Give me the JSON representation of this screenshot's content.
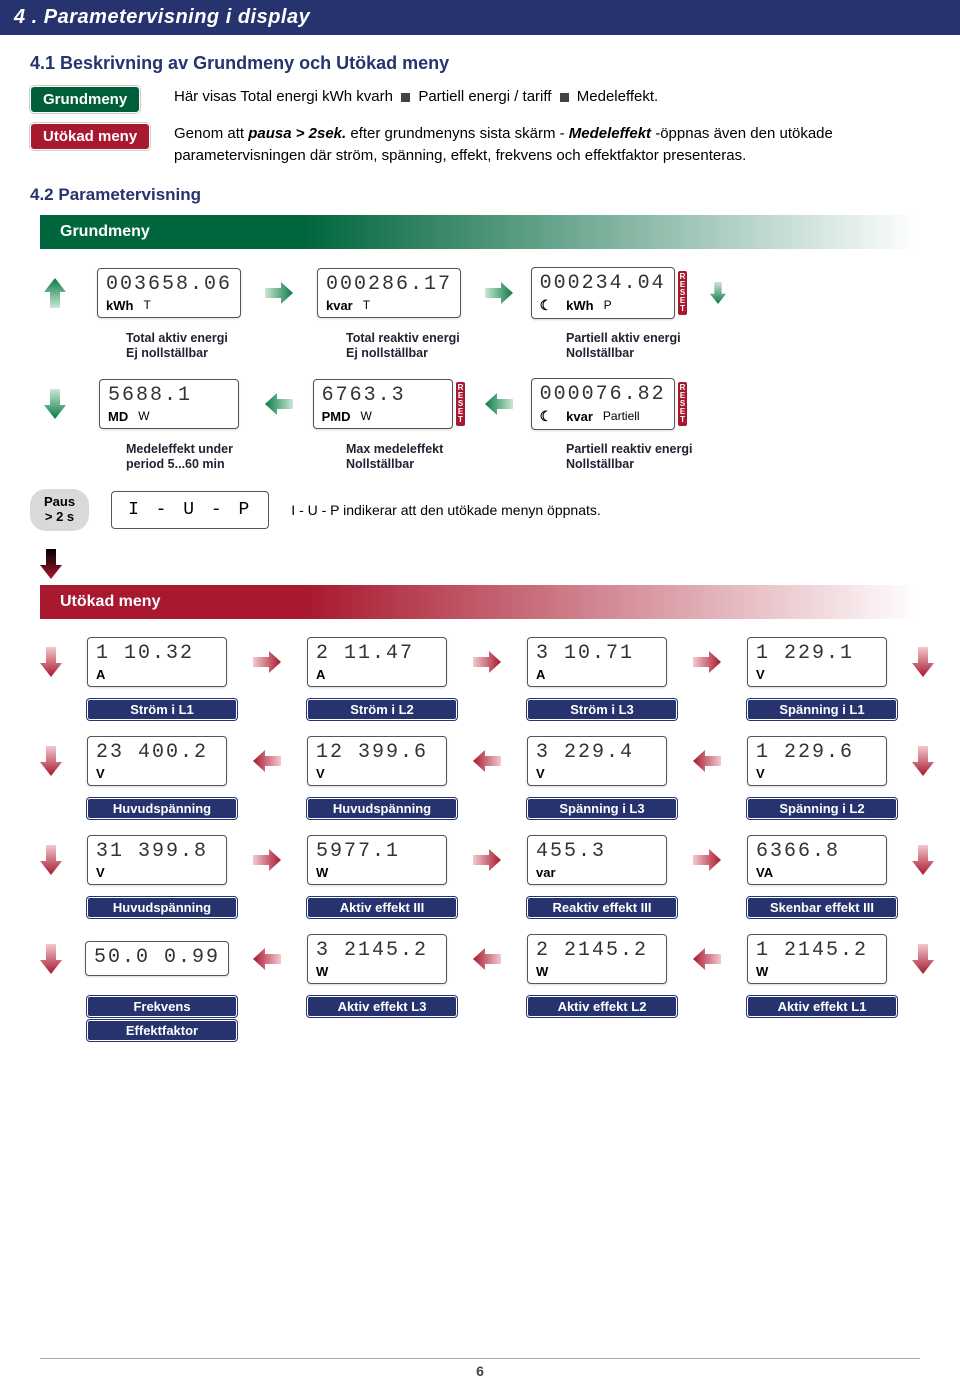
{
  "colors": {
    "navy": "#26336e",
    "green": "#005f3b",
    "red": "#a8182e",
    "green_grad_from": "#00663e",
    "red_grad_from": "#a8182e"
  },
  "header": "4 . Parametervisning i display",
  "h41": "4.1 Beskrivning av Grundmeny och Utökad meny",
  "grundmeny_label": "Grundmeny",
  "utokad_label": "Utökad meny",
  "grundmeny_text_parts": {
    "a": "Här visas Total energi  kWh kvarh ",
    "b": " Partiell energi / tariff ",
    "c": " Medeleffekt."
  },
  "utokad_text_parts": {
    "a": "Genom att ",
    "b": "pausa > 2sek.",
    "c": " efter grundmenyns sista skärm - ",
    "d": "Medeleffekt",
    "e": " -öppnas även den utökade parametervisningen där ström, spänning, effekt, frekvens och effektfaktor presenteras."
  },
  "h42": "4.2 Parametervisning",
  "grund": {
    "title": "Grundmeny",
    "row1": [
      {
        "digits": "003658.06",
        "unit": "kWh",
        "tag": "T",
        "caption1": "Total aktiv energi",
        "caption2": "Ej nollställbar",
        "reset": false,
        "moon": false
      },
      {
        "digits": "000286.17",
        "unit": "kvar",
        "tag": "T",
        "caption1": "Total reaktiv energi",
        "caption2": "Ej nollställbar",
        "reset": false,
        "moon": false
      },
      {
        "digits": "000234.04",
        "unit": "kWh",
        "tag": "P",
        "caption1": "Partiell aktiv energi",
        "caption2": "Nollställbar",
        "reset": true,
        "moon": true
      }
    ],
    "row2": [
      {
        "digits": "5688.1",
        "unit": "MD",
        "tag": "W",
        "caption1": "Medeleffekt under",
        "caption2": "period 5...60 min",
        "reset": false,
        "moon": false
      },
      {
        "digits": "6763.3",
        "unit": "PMD",
        "tag": "W",
        "caption1": "Max medeleffekt",
        "caption2": "Nollställbar",
        "reset": true,
        "moon": false
      },
      {
        "digits": "000076.82",
        "unit": "kvar",
        "tag": "Partiell",
        "caption1": "Partiell reaktiv energi",
        "caption2": "Nollställbar",
        "reset": true,
        "moon": true
      }
    ]
  },
  "paus": {
    "label1": "Paus",
    "label2": "> 2 s",
    "iup": "I - U - P",
    "iup_text": "I - U - P indikerar att den utökade menyn öppnats."
  },
  "utokad": {
    "title": "Utökad meny",
    "rows": [
      [
        {
          "digits": "1    10.32",
          "unit": "A",
          "cap": "Ström i L1"
        },
        {
          "digits": "2    11.47",
          "unit": "A",
          "cap": "Ström i L2"
        },
        {
          "digits": "3    10.71",
          "unit": "A",
          "cap": "Ström i L3"
        },
        {
          "digits": "1   229.1",
          "unit": "V",
          "cap": "Spänning i L1"
        }
      ],
      [
        {
          "digits": "23  400.2",
          "unit": "V",
          "cap": "Huvudspänning"
        },
        {
          "digits": "12  399.6",
          "unit": "V",
          "cap": "Huvudspänning"
        },
        {
          "digits": "3   229.4",
          "unit": "V",
          "cap": "Spänning i L3"
        },
        {
          "digits": "1   229.6",
          "unit": "V",
          "cap": "Spänning i L2"
        }
      ],
      [
        {
          "digits": "31  399.8",
          "unit": "V",
          "cap": "Huvudspänning"
        },
        {
          "digits": "5977.1",
          "unit": "W",
          "cap": "Aktiv effekt III"
        },
        {
          "digits": "455.3",
          "unit": "var",
          "cap": "Reaktiv effekt III"
        },
        {
          "digits": "6366.8",
          "unit": "VA",
          "cap": "Skenbar effekt III"
        }
      ],
      [
        {
          "digits": "50.0 0.99",
          "unit": "",
          "cap": "Frekvens",
          "cap2": "Effektfaktor"
        },
        {
          "digits": "3  2145.2",
          "unit": "W",
          "cap": "Aktiv effekt L3"
        },
        {
          "digits": "2  2145.2",
          "unit": "W",
          "cap": "Aktiv effekt L2"
        },
        {
          "digits": "1  2145.2",
          "unit": "W",
          "cap": "Aktiv effekt L1"
        }
      ]
    ],
    "arrow_dirs": [
      [
        "R",
        "R",
        "R",
        "R"
      ],
      [
        "L",
        "L",
        "L",
        "L"
      ],
      [
        "R",
        "R",
        "R",
        "R"
      ],
      [
        "L",
        "L",
        "L",
        "L"
      ]
    ]
  },
  "page_no": "6"
}
